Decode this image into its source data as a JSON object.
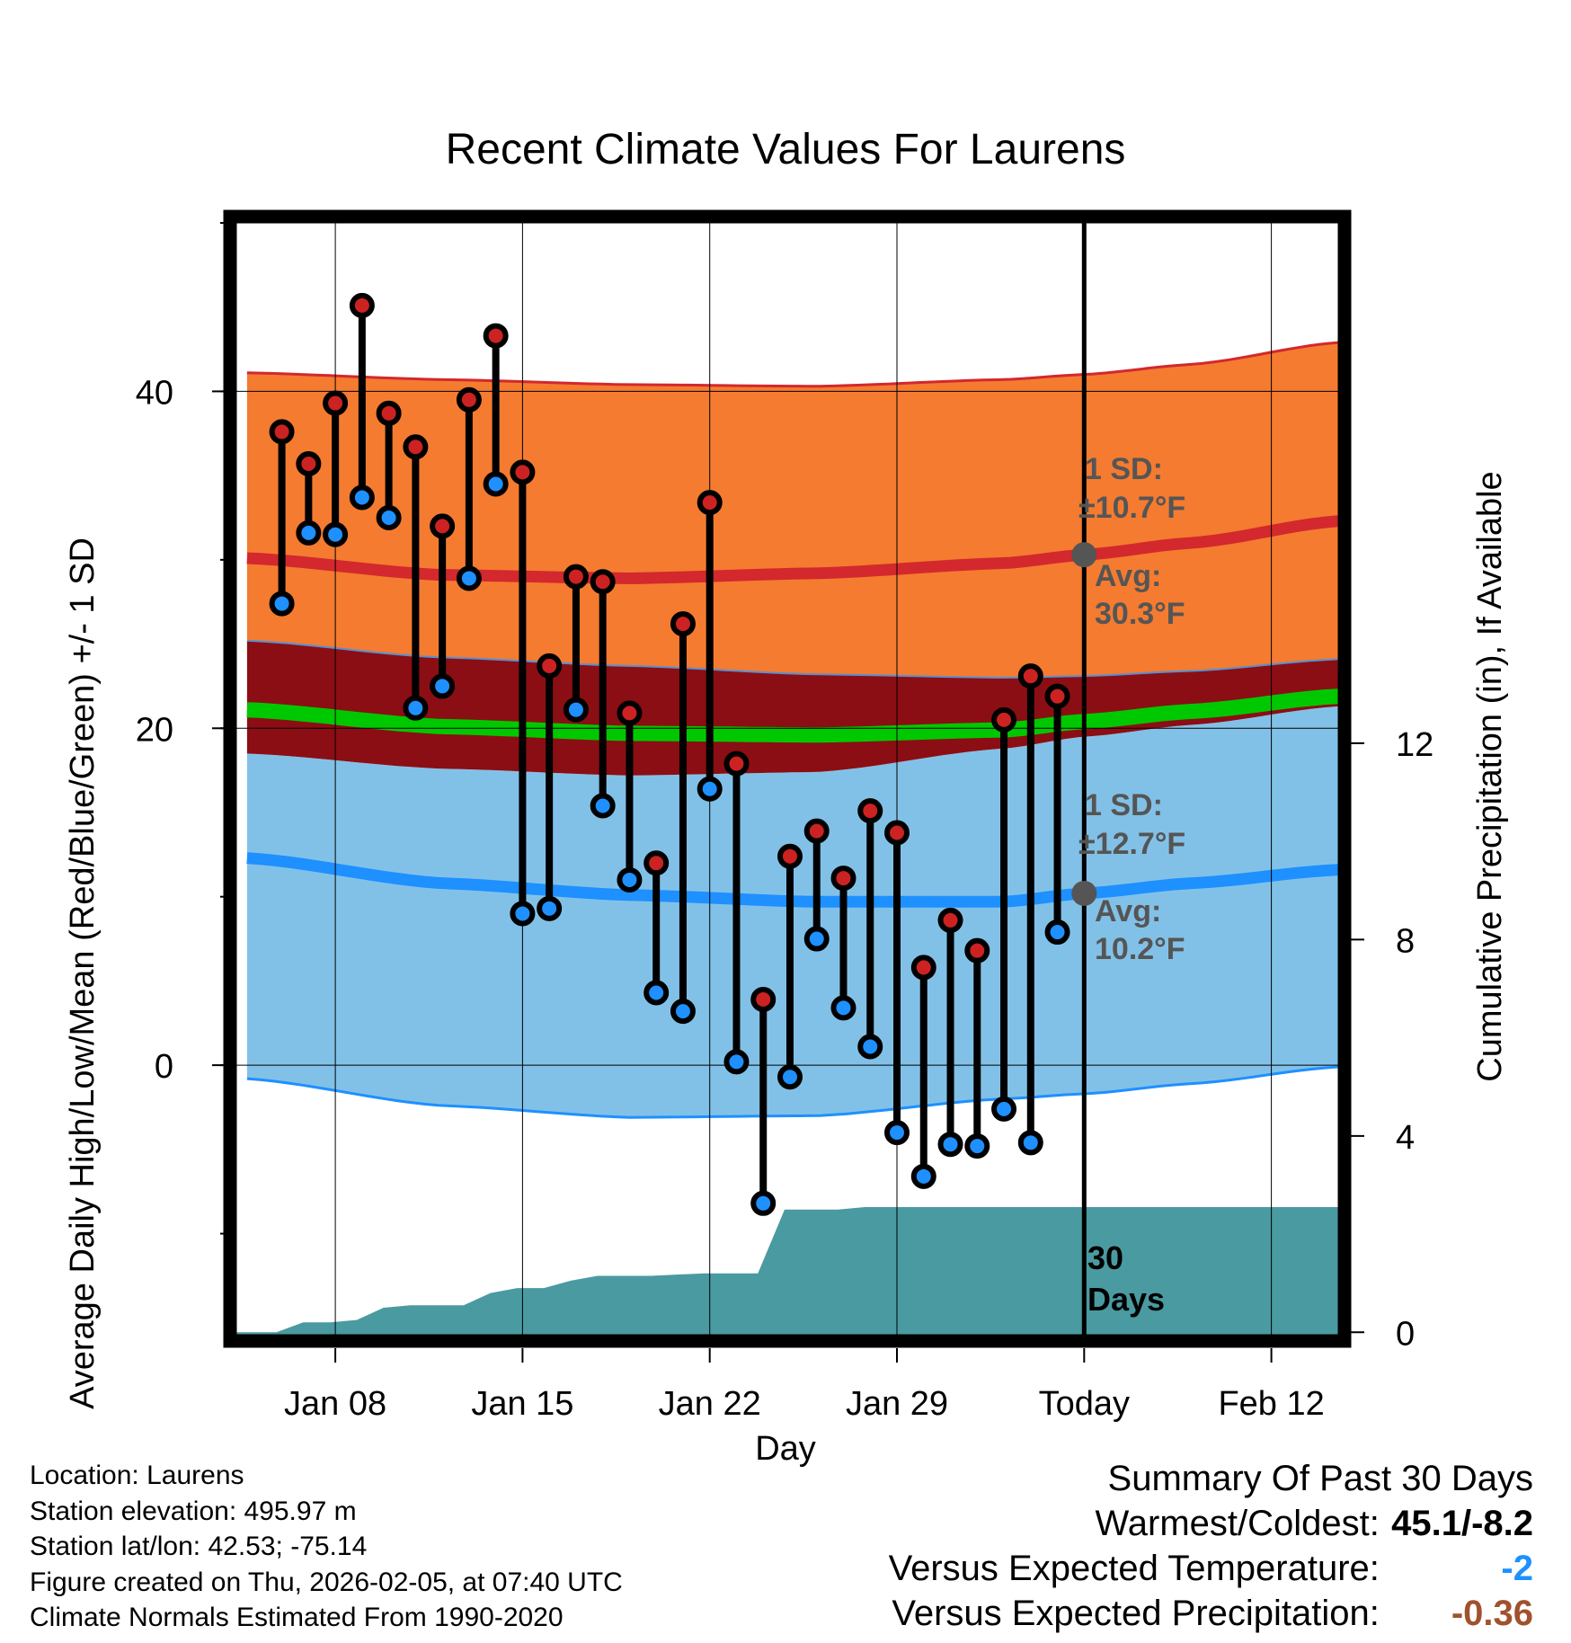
{
  "chart_data": {
    "type": "line",
    "title": "Recent Climate Values For Laurens",
    "xlabel": "Day",
    "ylabel": "Average Daily High/Low/Mean (Red/Blue/Green) +/- 1 SD",
    "y2label": "Cumulative Precipitation (in), If Available",
    "x_range_days": [
      -31.7,
      9.5
    ],
    "ylim": [
      -16.0,
      50.0
    ],
    "y2lim": [
      -0.05,
      22.6
    ],
    "y_ticks": [
      "0",
      "20",
      "40"
    ],
    "y2_ticks": [
      "0",
      "4",
      "8",
      "12"
    ],
    "x_ticks": [
      {
        "day": -28,
        "label": "Jan 08"
      },
      {
        "day": -21,
        "label": "Jan 15"
      },
      {
        "day": -14,
        "label": "Jan 22"
      },
      {
        "day": -7,
        "label": "Jan 29"
      },
      {
        "day": 0,
        "label": "Today"
      },
      {
        "day": 7,
        "label": "Feb 12"
      }
    ],
    "normals_x": [
      -31.3,
      -24,
      -17,
      -10,
      -3,
      0,
      4,
      9.5
    ],
    "normal_high_avg": [
      30.1,
      29.1,
      28.9,
      29.2,
      29.8,
      30.3,
      31.0,
      32.3
    ],
    "normal_high_upper": [
      41.1,
      40.7,
      40.4,
      40.3,
      40.7,
      41.0,
      41.6,
      42.9
    ],
    "normal_high_lower": [
      25.2,
      24.2,
      23.7,
      23.2,
      23.0,
      23.1,
      23.4,
      24.1
    ],
    "normal_mean": [
      21.1,
      20.1,
      19.7,
      19.6,
      19.9,
      20.4,
      21.0,
      21.9
    ],
    "normal_low_avg": [
      12.3,
      10.8,
      10.1,
      9.7,
      9.7,
      10.2,
      10.8,
      11.6
    ],
    "normal_low_upper": [
      18.5,
      17.6,
      17.2,
      17.4,
      18.8,
      19.5,
      20.2,
      21.3
    ],
    "normal_low_lower": [
      -0.8,
      -2.4,
      -3.1,
      -3.0,
      -2.0,
      -1.7,
      -1.1,
      -0.1
    ],
    "days": [
      -30,
      -29,
      -28,
      -27,
      -26,
      -25,
      -24,
      -23,
      -22,
      -21,
      -20,
      -19,
      -18,
      -17,
      -16,
      -15,
      -14,
      -13,
      -12,
      -11,
      -10,
      -9,
      -8,
      -7,
      -6,
      -5,
      -4,
      -3,
      -2,
      -1
    ],
    "highs": [
      37.6,
      35.7,
      39.3,
      45.1,
      38.7,
      36.7,
      32.0,
      39.5,
      43.3,
      35.2,
      23.7,
      29.0,
      28.7,
      20.9,
      12.0,
      26.2,
      33.4,
      17.9,
      3.9,
      12.4,
      13.9,
      11.1,
      15.1,
      13.8,
      5.8,
      8.6,
      6.8,
      20.5,
      23.1,
      21.9
    ],
    "lows": [
      27.4,
      31.6,
      31.5,
      33.7,
      32.5,
      21.2,
      22.5,
      28.9,
      34.5,
      9.0,
      9.3,
      21.1,
      15.4,
      11.0,
      4.3,
      3.2,
      16.4,
      0.2,
      -8.2,
      -0.7,
      7.5,
      3.4,
      1.1,
      -4.0,
      -6.6,
      -4.7,
      -4.8,
      -2.6,
      -4.6,
      7.9
    ],
    "precip_cumulative": [
      [
        -31.7,
        0.0
      ],
      [
        -30.2,
        0.0
      ],
      [
        -29.2,
        0.2
      ],
      [
        -28.2,
        0.2
      ],
      [
        -27.2,
        0.25
      ],
      [
        -26.2,
        0.5
      ],
      [
        -25.2,
        0.55
      ],
      [
        -23.2,
        0.55
      ],
      [
        -22.2,
        0.8
      ],
      [
        -21.2,
        0.9
      ],
      [
        -20.2,
        0.9
      ],
      [
        -19.2,
        1.05
      ],
      [
        -18.2,
        1.15
      ],
      [
        -16.2,
        1.15
      ],
      [
        -14.2,
        1.2
      ],
      [
        -13.2,
        1.2
      ],
      [
        -12.2,
        1.2
      ],
      [
        -11.2,
        2.5
      ],
      [
        -10.2,
        2.5
      ],
      [
        -9.2,
        2.5
      ],
      [
        -8.2,
        2.55
      ],
      [
        -5.2,
        2.55
      ],
      [
        0.0,
        2.55
      ],
      [
        9.5,
        2.55
      ]
    ],
    "today_normal_markers": [
      30.3,
      10.2
    ],
    "annotations": {
      "high": {
        "sd_label": "1 SD:",
        "sd_value": "±10.7°F",
        "avg_label": "Avg:",
        "avg_value": "30.3°F"
      },
      "low": {
        "sd_label": "1 SD:",
        "sd_value": "±12.7°F",
        "avg_label": "Avg:",
        "avg_value": "10.2°F"
      },
      "period_line1": "30",
      "period_line2": "Days"
    },
    "colors": {
      "high_band": "#f47b30",
      "high_avg": "#d3282d",
      "overlap_band": "#8b0e14",
      "mean": "#00c800",
      "low_band": "#82c1e7",
      "low_avg": "#1e90ff",
      "low_lower_line": "#1e90ff",
      "high_upper_line": "#d3282d",
      "precip": "#4a9aa1",
      "high_dot": "#cc2222",
      "low_dot": "#1e90ff",
      "marker": "#555555"
    }
  },
  "footer": {
    "location": "Location: Laurens",
    "elevation": "Station elevation: 495.97 m",
    "latlon": "Station lat/lon: 42.53; -75.14",
    "created": "Figure created on Thu, 2026-02-05, at 07:40 UTC",
    "normals": "Climate Normals Estimated From 1990-2020"
  },
  "summary": {
    "title": "Summary Of Past 30 Days",
    "warm_cold_label": "Warmest/Coldest:",
    "warm_cold_value": "45.1/-8.2",
    "temp_label": "Versus Expected Temperature:",
    "temp_value": "-2",
    "temp_color": "#1e90ff",
    "precip_label": "Versus Expected Precipitation:",
    "precip_value": "-0.36",
    "precip_color": "#a0522d"
  }
}
